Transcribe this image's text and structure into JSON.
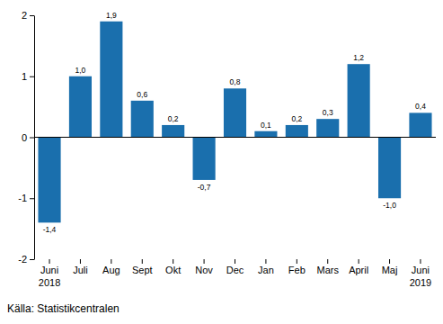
{
  "chart_data": {
    "type": "bar",
    "categories": [
      "Juni 2018",
      "Juli",
      "Aug",
      "Sept",
      "Okt",
      "Nov",
      "Dec",
      "Jan",
      "Feb",
      "Mars",
      "April",
      "Maj",
      "Juni 2019"
    ],
    "values": [
      -1.4,
      1.0,
      1.9,
      0.6,
      0.2,
      -0.7,
      0.8,
      0.1,
      0.2,
      0.3,
      1.2,
      -1.0,
      0.4
    ],
    "value_labels": [
      "-1,4",
      "1,0",
      "1,9",
      "0,6",
      "0,2",
      "-0,7",
      "0,8",
      "0,1",
      "0,2",
      "0,3",
      "1,2",
      "-1,0",
      "0,4"
    ],
    "data_labels": true,
    "color": "#1a6fad",
    "ylim": [
      -2,
      2
    ],
    "yticks": [
      -2,
      -1,
      0,
      1,
      2
    ],
    "grid": false,
    "source": "Källa: Statistikcentralen"
  }
}
